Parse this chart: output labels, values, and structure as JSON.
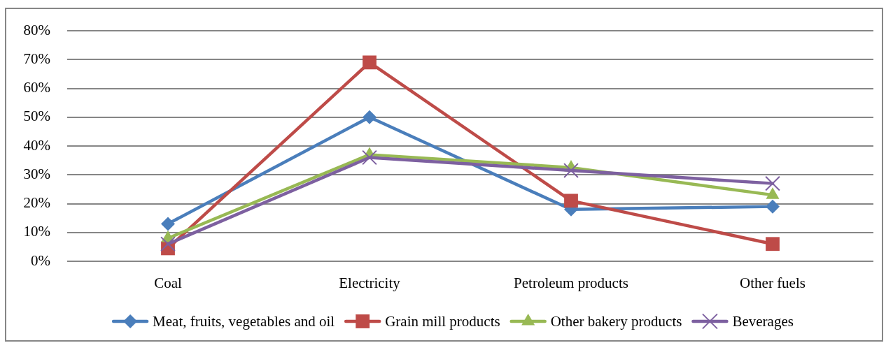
{
  "chart_data": {
    "type": "line",
    "categories": [
      "Coal",
      "Electricity",
      "Petroleum products",
      "Other fuels"
    ],
    "series": [
      {
        "name": "Meat, fruits, vegetables and oil",
        "color": "#4a7ebb",
        "marker": "diamond",
        "values": [
          13,
          50,
          18,
          19
        ]
      },
      {
        "name": "Grain mill products",
        "color": "#be4b48",
        "marker": "square",
        "values": [
          4.5,
          69,
          21,
          6
        ]
      },
      {
        "name": "Other bakery products",
        "color": "#98b954",
        "marker": "triangle",
        "values": [
          8,
          37,
          32.5,
          23
        ]
      },
      {
        "name": "Beverages",
        "color": "#7d60a0",
        "marker": "cross",
        "values": [
          6,
          36,
          31.5,
          27
        ]
      }
    ],
    "ylim": [
      0,
      80
    ],
    "yticks": [
      {
        "value": 0,
        "label": "0%"
      },
      {
        "value": 10,
        "label": "10%"
      },
      {
        "value": 20,
        "label": "20%"
      },
      {
        "value": 30,
        "label": "30%"
      },
      {
        "value": 40,
        "label": "40%"
      },
      {
        "value": 50,
        "label": "50%"
      },
      {
        "value": 60,
        "label": "60%"
      },
      {
        "value": 70,
        "label": "70%"
      },
      {
        "value": 80,
        "label": "80%"
      }
    ],
    "grid": "y",
    "legend": "bottom",
    "line_style": "solid"
  }
}
